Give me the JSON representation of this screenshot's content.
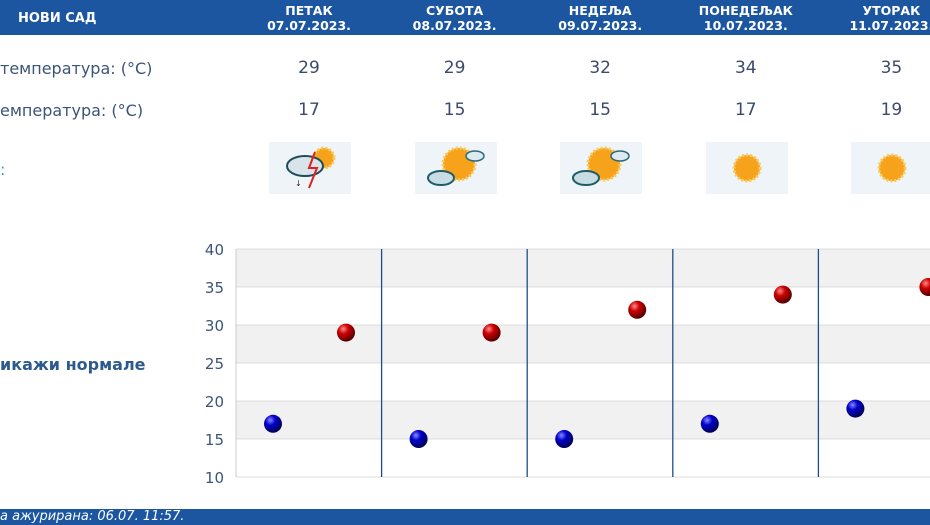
{
  "header": {
    "city": "НОВИ САД"
  },
  "days": [
    {
      "name": "ПЕТАК",
      "date": "07.07.2023.",
      "max": "29",
      "min": "17",
      "icon": "storm-cloud-sun-icon"
    },
    {
      "name": "СУБОТА",
      "date": "08.07.2023.",
      "max": "29",
      "min": "15",
      "icon": "sun-cloud-icon"
    },
    {
      "name": "НЕДЕЉА",
      "date": "09.07.2023.",
      "max": "32",
      "min": "15",
      "icon": "sun-cloud-icon"
    },
    {
      "name": "ПОНЕДЕЉАК",
      "date": "10.07.2023.",
      "max": "34",
      "min": "17",
      "icon": "sun-icon"
    },
    {
      "name": "УТОРАК",
      "date": "11.07.2023.",
      "max": "35",
      "min": "19",
      "icon": "sun-icon"
    }
  ],
  "labels": {
    "max": "температура: (°C)",
    "min": "емпература: (°C)",
    "weather": ":",
    "normals": "икажи нормале"
  },
  "footer": {
    "text": "а ажурирана:  06.07. 11:57."
  },
  "colors": {
    "header": "#1c56a0",
    "max_point": "#cc0000",
    "min_point": "#0000cc"
  },
  "chart_data": {
    "type": "scatter",
    "categories": [
      "07.07.2023.",
      "08.07.2023.",
      "09.07.2023.",
      "10.07.2023.",
      "11.07.2023."
    ],
    "series": [
      {
        "values": [
          29,
          29,
          32,
          34,
          35
        ],
        "color": "#cc0000"
      },
      {
        "values": [
          17,
          15,
          15,
          17,
          19
        ],
        "color": "#0000cc"
      }
    ],
    "ylim": [
      10,
      40
    ],
    "yticks": [
      "10",
      "15",
      "20",
      "25",
      "30",
      "35",
      "40"
    ],
    "grid": true
  }
}
